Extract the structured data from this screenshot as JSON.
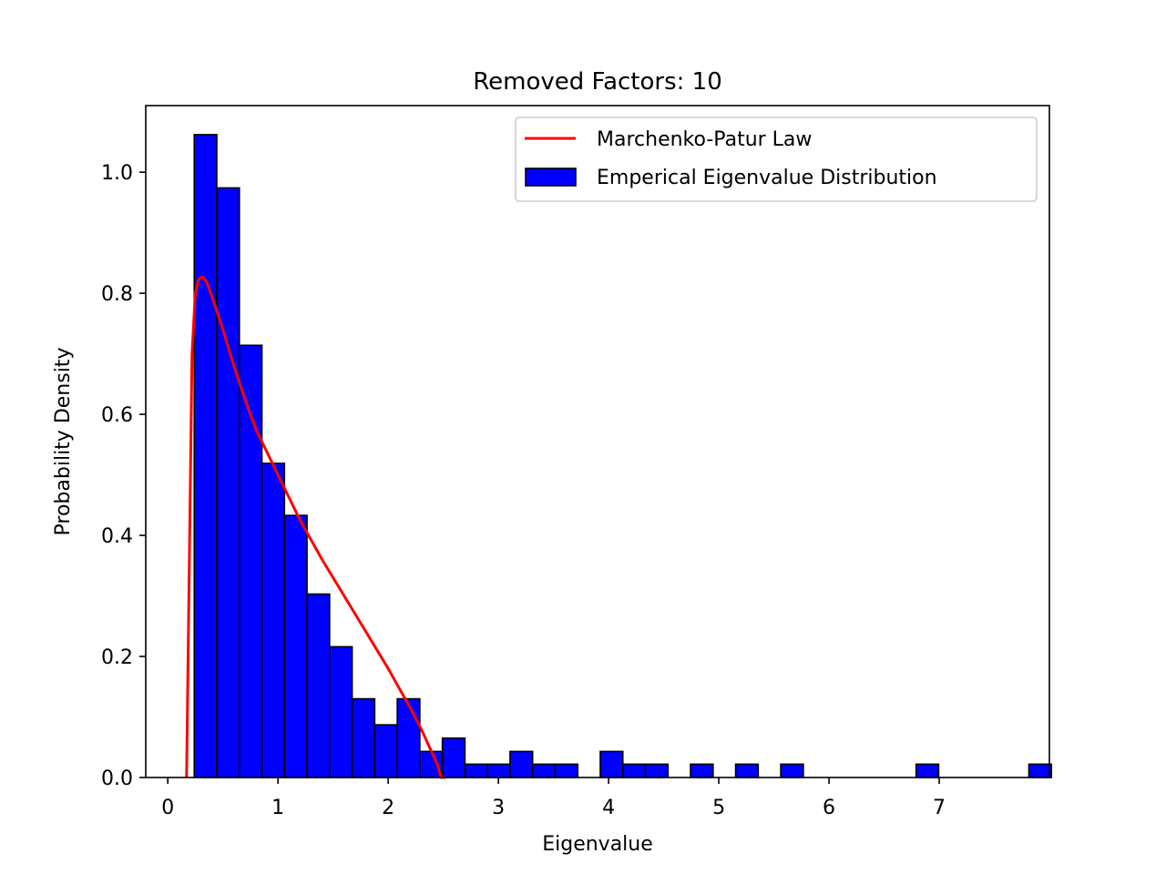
{
  "chart_data": {
    "type": "bar",
    "title": "Removed Factors: 10",
    "xlabel": "Eigenvalue",
    "ylabel": "Probability Density",
    "xlim": [
      -0.2,
      8.0
    ],
    "ylim": [
      0,
      1.11
    ],
    "xticks": [
      0,
      1,
      2,
      3,
      4,
      5,
      6,
      7
    ],
    "yticks": [
      0.0,
      0.2,
      0.4,
      0.6,
      0.8,
      1.0
    ],
    "xtick_labels": [
      "0",
      "1",
      "2",
      "3",
      "4",
      "5",
      "6",
      "7"
    ],
    "ytick_labels": [
      "0.0",
      "0.2",
      "0.4",
      "0.6",
      "0.8",
      "1.0"
    ],
    "grid": false,
    "legend": {
      "position": "upper right",
      "entries": [
        "Marchenko-Patur Law",
        "Emperical Eigenvalue Distribution"
      ]
    },
    "histogram": {
      "name": "Emperical Eigenvalue Distribution",
      "color": "#0000ff",
      "edgecolor": "#000000",
      "bin_start": 0.24,
      "bin_width": 0.2047,
      "values": [
        1.062,
        0.974,
        0.714,
        0.519,
        0.433,
        0.303,
        0.216,
        0.13,
        0.087,
        0.13,
        0.043,
        0.065,
        0.022,
        0.022,
        0.043,
        0.022,
        0.022,
        0,
        0.043,
        0.022,
        0.022,
        0,
        0.022,
        0,
        0.022,
        0,
        0.022,
        0,
        0,
        0,
        0,
        0,
        0.022,
        0,
        0,
        0,
        0,
        0.022
      ]
    },
    "curve": {
      "name": "Marchenko-Patur Law",
      "color": "#ff0000",
      "x": [
        0.17,
        0.2,
        0.22,
        0.25,
        0.28,
        0.31,
        0.35,
        0.4,
        0.5,
        0.6,
        0.7,
        0.8,
        1.0,
        1.2,
        1.4,
        1.6,
        1.8,
        2.0,
        2.2,
        2.3,
        2.35,
        2.4,
        2.45,
        2.48,
        2.5,
        2.52
      ],
      "y": [
        0,
        0.42,
        0.7,
        0.8,
        0.823,
        0.827,
        0.82,
        0.795,
        0.74,
        0.68,
        0.625,
        0.575,
        0.5,
        0.425,
        0.36,
        0.3,
        0.24,
        0.18,
        0.115,
        0.08,
        0.06,
        0.04,
        0.02,
        0.0,
        0.0,
        0.0
      ]
    }
  }
}
